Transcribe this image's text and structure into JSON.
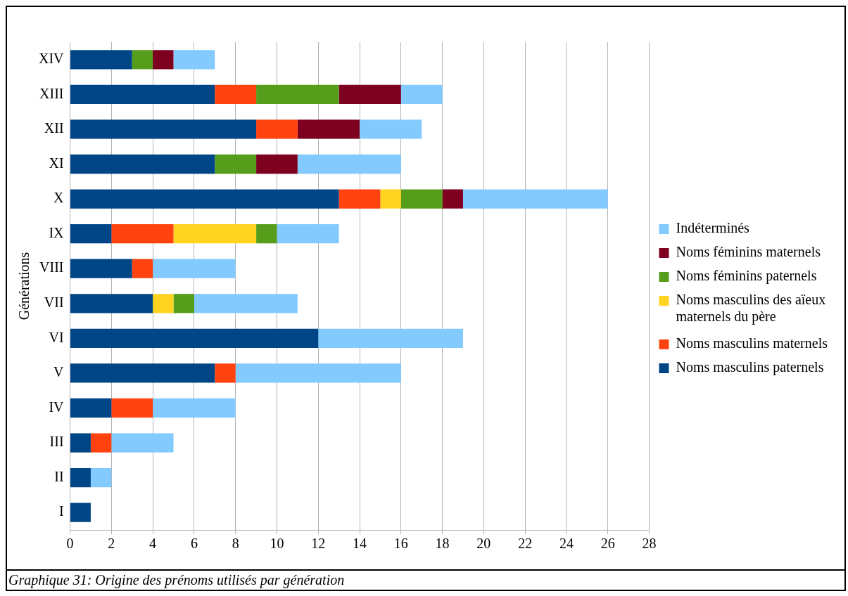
{
  "chart_data": {
    "type": "bar",
    "orientation": "horizontal",
    "stacked": true,
    "ylabel": "Générations",
    "annotations": [
      "Graphique 31: Origine des prénoms utilisés par génération"
    ],
    "categories": [
      "XIV",
      "XIII",
      "XII",
      "XI",
      "X",
      "IX",
      "VIII",
      "VII",
      "VI",
      "V",
      "IV",
      "III",
      "II",
      "I"
    ],
    "series": [
      {
        "name": "Noms masculins paternels",
        "color": "#004586",
        "values": [
          3,
          7,
          9,
          7,
          13,
          2,
          3,
          4,
          12,
          7,
          2,
          1,
          1,
          1
        ]
      },
      {
        "name": "Noms masculins maternels",
        "color": "#ff420e",
        "values": [
          0,
          2,
          2,
          0,
          2,
          3,
          1,
          0,
          0,
          1,
          2,
          1,
          0,
          0
        ]
      },
      {
        "name": "Noms masculins des aïeux maternels du père",
        "color": "#ffd320",
        "values": [
          0,
          0,
          0,
          0,
          1,
          4,
          0,
          1,
          0,
          0,
          0,
          0,
          0,
          0
        ]
      },
      {
        "name": "Noms féminins paternels",
        "color": "#579d1c",
        "values": [
          1,
          4,
          0,
          2,
          2,
          1,
          0,
          1,
          0,
          0,
          0,
          0,
          0,
          0
        ]
      },
      {
        "name": "Noms féminins maternels",
        "color": "#7e0021",
        "values": [
          1,
          3,
          3,
          2,
          1,
          0,
          0,
          0,
          0,
          0,
          0,
          0,
          0,
          0
        ]
      },
      {
        "name": "Indéterminés",
        "color": "#83caff",
        "values": [
          2,
          2,
          3,
          5,
          7,
          3,
          4,
          5,
          7,
          8,
          4,
          3,
          1,
          0
        ]
      }
    ],
    "xlim": [
      0,
      28
    ],
    "xticks": [
      0,
      2,
      4,
      6,
      8,
      10,
      12,
      14,
      16,
      18,
      20,
      22,
      24,
      26,
      28
    ],
    "grid": "x",
    "legend": "right"
  }
}
